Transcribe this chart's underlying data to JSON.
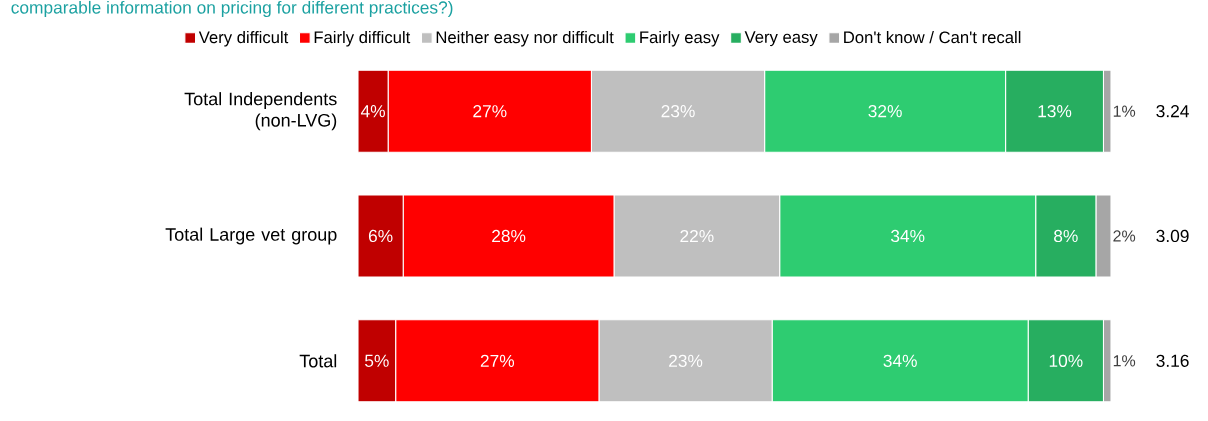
{
  "chart_data": {
    "type": "bar",
    "orientation": "horizontal",
    "stacked": true,
    "title": "comparable information on pricing for different practices?)",
    "categories": [
      "Total Independents (non-LVG)",
      "Total Large vet group",
      "Total"
    ],
    "series": [
      {
        "name": "Very difficult",
        "color": "#c00000",
        "values": [
          4,
          6,
          5
        ],
        "value_labels": [
          "4%",
          "6%",
          "5%"
        ]
      },
      {
        "name": "Fairly difficult",
        "color": "#ff0000",
        "values": [
          27,
          28,
          27
        ],
        "value_labels": [
          "27%",
          "28%",
          "27%"
        ]
      },
      {
        "name": "Neither easy nor difficult",
        "color": "#bfbfbf",
        "values": [
          23,
          22,
          23
        ],
        "value_labels": [
          "23%",
          "22%",
          "23%"
        ]
      },
      {
        "name": "Fairly easy",
        "color": "#2ecc71",
        "values": [
          32,
          34,
          34
        ],
        "value_labels": [
          "32%",
          "34%",
          "34%"
        ]
      },
      {
        "name": "Very easy",
        "color": "#27ae60",
        "values": [
          13,
          8,
          10
        ],
        "value_labels": [
          "13%",
          "8%",
          "10%"
        ]
      },
      {
        "name": "Don't know / Can't recall",
        "color": "#a6a6a6",
        "values": [
          1,
          2,
          1
        ],
        "value_labels": [
          "1%",
          "2%",
          "1%"
        ]
      }
    ],
    "annotations": [
      "3.24",
      "3.09",
      "3.16"
    ],
    "legend": "top",
    "tick_labels": "y"
  }
}
